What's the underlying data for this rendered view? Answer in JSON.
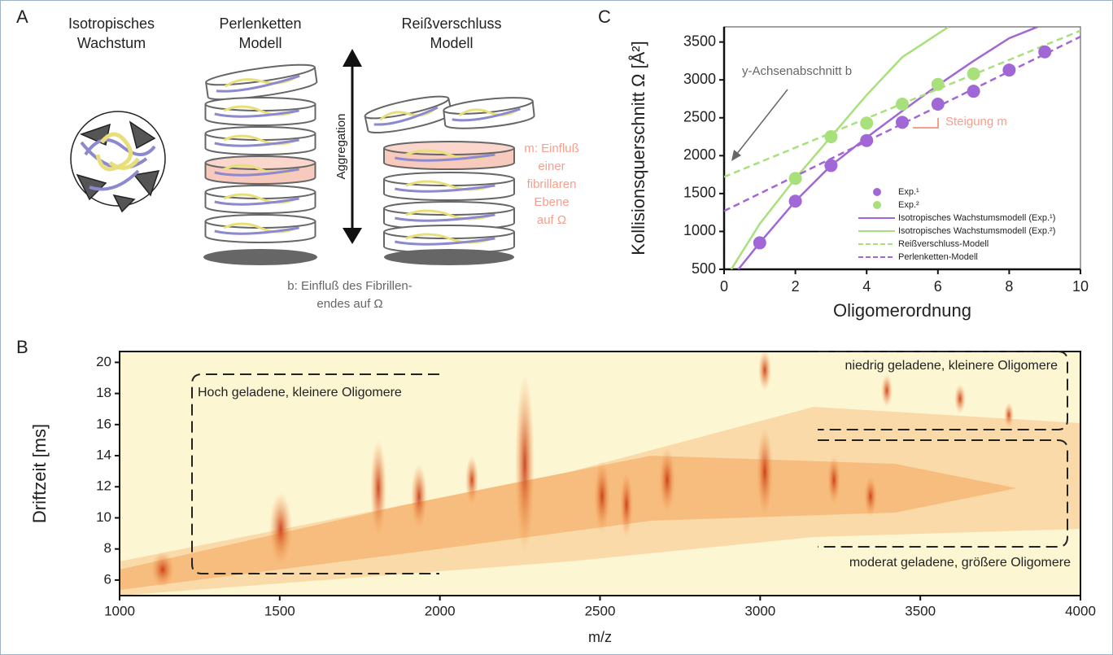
{
  "panel_labels": [
    "A",
    "B",
    "C"
  ],
  "panel_a": {
    "isotropic": [
      "Isotropisches",
      "Wachstum"
    ],
    "pearl": [
      "Perlenketten",
      "Modell"
    ],
    "zipper": [
      "Reißverschluss",
      "Modell"
    ],
    "arrow": "Aggregation",
    "m_note": [
      "m: Einfluß",
      "einer",
      "fibrillaren",
      "Ebene",
      "auf Ω"
    ],
    "b_note": [
      "b: Einfluß des Fibrillen-",
      "endes auf Ω"
    ]
  },
  "chart_data": [
    {
      "type": "line",
      "x_label": "Oligomerordnung",
      "y_label": "Kollisionsquerschnitt Ω [Å²]",
      "xlim": [
        0,
        10
      ],
      "xticks": [
        0,
        2,
        4,
        6,
        8,
        10
      ],
      "ylim": [
        500,
        3700
      ],
      "yticks": [
        500,
        1000,
        1500,
        2000,
        2500,
        3000,
        3500
      ],
      "annotations": [
        "y-Achsenabschnitt b",
        "Steigung m"
      ],
      "series": [
        {
          "name": "Exp.¹",
          "color": "#a267d6",
          "mode": "markers",
          "x": [
            1,
            2,
            3,
            4,
            5,
            6,
            7,
            8,
            9
          ],
          "values": [
            850,
            1400,
            1870,
            2200,
            2440,
            2680,
            2850,
            3130,
            3370
          ]
        },
        {
          "name": "Exp.²",
          "color": "#a8e07c",
          "mode": "markers",
          "x": [
            2,
            3,
            4,
            5,
            6,
            7
          ],
          "values": [
            1700,
            2250,
            2430,
            2680,
            2940,
            3080
          ]
        },
        {
          "name": "Isotropisches Wachstumsmodell (Exp.¹)",
          "color": "#a267d6",
          "mode": "solid",
          "x": [
            0.4,
            1,
            2,
            3,
            4,
            5,
            6,
            7,
            8,
            8.8
          ],
          "values": [
            500,
            850,
            1400,
            1870,
            2240,
            2590,
            2930,
            3250,
            3550,
            3700
          ]
        },
        {
          "name": "Isotropisches Wachstumsmodell (Exp.²)",
          "color": "#a8e07c",
          "mode": "solid",
          "x": [
            0.2,
            1,
            2,
            3,
            4,
            5,
            6.3
          ],
          "values": [
            500,
            1100,
            1700,
            2250,
            2800,
            3300,
            3700
          ]
        },
        {
          "name": "Reißverschluss-Modell",
          "color": "#a8e07c",
          "mode": "dashed",
          "x": [
            0,
            10
          ],
          "values": [
            1720,
            3650
          ]
        },
        {
          "name": "Perlenketten-Modell",
          "color": "#a267d6",
          "mode": "dashed",
          "x": [
            0,
            10
          ],
          "values": [
            1270,
            3570
          ]
        }
      ]
    },
    {
      "type": "heatmap",
      "x_label": "m/z",
      "y_label": "Driftzeit [ms]",
      "xlim": [
        1000,
        4000
      ],
      "xticks": [
        1000,
        1500,
        2000,
        2500,
        3000,
        3500,
        4000
      ],
      "ylim": [
        5,
        20.7
      ],
      "yticks": [
        6,
        8,
        10,
        12,
        14,
        16,
        18,
        20
      ],
      "annotations": [
        "Hoch geladene, kleinere Oligomere",
        "niedrig geladene, kleinere Oligomere",
        "moderat geladene, größere Oligomere"
      ]
    }
  ]
}
